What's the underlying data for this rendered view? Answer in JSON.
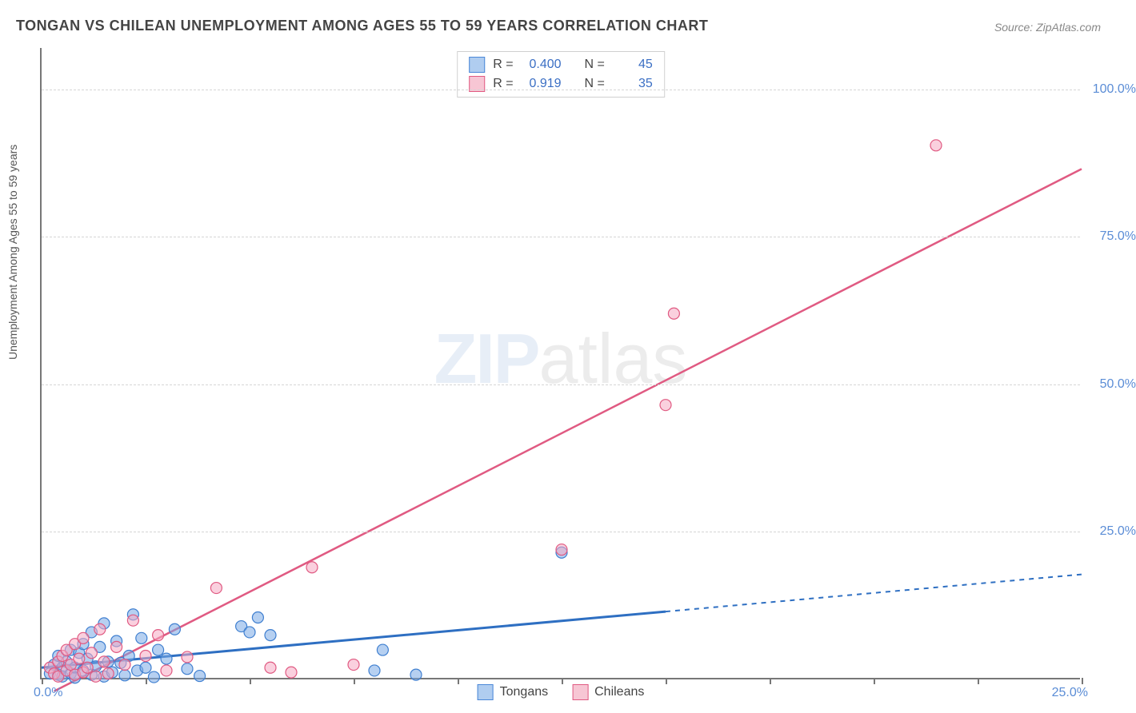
{
  "title": "TONGAN VS CHILEAN UNEMPLOYMENT AMONG AGES 55 TO 59 YEARS CORRELATION CHART",
  "source": "Source: ZipAtlas.com",
  "ylabel": "Unemployment Among Ages 55 to 59 years",
  "watermark_a": "ZIP",
  "watermark_b": "atlas",
  "chart": {
    "type": "scatter",
    "background_color": "#ffffff",
    "grid_color": "#d5d5d5",
    "axis_color": "#777777",
    "tick_label_color": "#5b8dd6",
    "axis_label_color": "#555555",
    "title_color": "#444444",
    "source_color": "#888888",
    "title_fontsize": 18,
    "label_fontsize": 14,
    "tick_fontsize": 16,
    "xlim": [
      0,
      25
    ],
    "ylim": [
      0,
      107
    ],
    "x_tick_step": 2.5,
    "x_axis_left_label": "0.0%",
    "x_axis_right_label": "25.0%",
    "y_ticks": [
      25,
      50,
      75,
      100
    ],
    "y_tick_labels": [
      "25.0%",
      "50.0%",
      "75.0%",
      "100.0%"
    ],
    "marker_radius": 7,
    "marker_stroke_width": 1.2,
    "stat_legend": {
      "rows": [
        {
          "swatch_fill": "#b0cdf0",
          "swatch_stroke": "#4a87d8",
          "r_label": "R =",
          "r_value": "0.400",
          "n_label": "N =",
          "n_value": "45"
        },
        {
          "swatch_fill": "#f7c6d4",
          "swatch_stroke": "#e05a82",
          "r_label": "R =",
          "r_value": "0.919",
          "n_label": "N =",
          "n_value": "35"
        }
      ]
    },
    "bottom_legend": [
      {
        "label": "Tongans",
        "fill": "#b0cdf0",
        "stroke": "#4a87d8"
      },
      {
        "label": "Chileans",
        "fill": "#f7c6d4",
        "stroke": "#e05a82"
      }
    ],
    "series": [
      {
        "name": "Tongans",
        "marker_fill": "rgba(122,170,230,0.55)",
        "marker_stroke": "#3f7fd0",
        "trend": {
          "x1": 0,
          "y1": 2.0,
          "x2": 15,
          "y2": 11.5,
          "x2_ext": 25,
          "y2_ext": 17.8,
          "color": "#2e6fc2",
          "width": 3
        },
        "points": [
          [
            0.2,
            1.0
          ],
          [
            0.3,
            2.5
          ],
          [
            0.4,
            0.8
          ],
          [
            0.4,
            4.0
          ],
          [
            0.5,
            2.0
          ],
          [
            0.5,
            0.5
          ],
          [
            0.6,
            3.0
          ],
          [
            0.7,
            1.0
          ],
          [
            0.7,
            5.0
          ],
          [
            0.8,
            2.0
          ],
          [
            0.8,
            0.3
          ],
          [
            0.9,
            4.5
          ],
          [
            1.0,
            6.0
          ],
          [
            1.0,
            1.5
          ],
          [
            1.1,
            3.5
          ],
          [
            1.2,
            8.0
          ],
          [
            1.2,
            0.8
          ],
          [
            1.3,
            2.2
          ],
          [
            1.4,
            5.5
          ],
          [
            1.5,
            0.5
          ],
          [
            1.5,
            9.5
          ],
          [
            1.6,
            3.0
          ],
          [
            1.7,
            1.2
          ],
          [
            1.8,
            6.5
          ],
          [
            1.9,
            2.8
          ],
          [
            2.0,
            0.7
          ],
          [
            2.1,
            4.0
          ],
          [
            2.2,
            11.0
          ],
          [
            2.3,
            1.5
          ],
          [
            2.4,
            7.0
          ],
          [
            2.5,
            2.0
          ],
          [
            2.7,
            0.4
          ],
          [
            2.8,
            5.0
          ],
          [
            3.0,
            3.5
          ],
          [
            3.2,
            8.5
          ],
          [
            3.5,
            1.8
          ],
          [
            3.8,
            0.6
          ],
          [
            4.8,
            9.0
          ],
          [
            5.0,
            8.0
          ],
          [
            5.2,
            10.5
          ],
          [
            5.5,
            7.5
          ],
          [
            8.0,
            1.5
          ],
          [
            8.2,
            5.0
          ],
          [
            9.0,
            0.8
          ],
          [
            12.5,
            21.5
          ]
        ]
      },
      {
        "name": "Chileans",
        "marker_fill": "rgba(245,170,195,0.55)",
        "marker_stroke": "#e05a82",
        "trend": {
          "x1": 0.3,
          "y1": -2,
          "x2": 25,
          "y2": 86.5,
          "color": "#e05a82",
          "width": 2.5
        },
        "points": [
          [
            0.2,
            2.0
          ],
          [
            0.3,
            1.0
          ],
          [
            0.4,
            3.0
          ],
          [
            0.4,
            0.5
          ],
          [
            0.5,
            4.0
          ],
          [
            0.6,
            1.5
          ],
          [
            0.6,
            5.0
          ],
          [
            0.7,
            2.5
          ],
          [
            0.8,
            0.8
          ],
          [
            0.8,
            6.0
          ],
          [
            0.9,
            3.5
          ],
          [
            1.0,
            1.2
          ],
          [
            1.0,
            7.0
          ],
          [
            1.1,
            2.0
          ],
          [
            1.2,
            4.5
          ],
          [
            1.3,
            0.5
          ],
          [
            1.4,
            8.5
          ],
          [
            1.5,
            3.0
          ],
          [
            1.6,
            1.0
          ],
          [
            1.8,
            5.5
          ],
          [
            2.0,
            2.5
          ],
          [
            2.2,
            10.0
          ],
          [
            2.5,
            4.0
          ],
          [
            2.8,
            7.5
          ],
          [
            3.0,
            1.5
          ],
          [
            3.5,
            3.8
          ],
          [
            4.2,
            15.5
          ],
          [
            5.5,
            2.0
          ],
          [
            6.0,
            1.2
          ],
          [
            6.5,
            19.0
          ],
          [
            7.5,
            2.5
          ],
          [
            12.5,
            22.0
          ],
          [
            15.0,
            46.5
          ],
          [
            15.2,
            62.0
          ],
          [
            21.5,
            90.5
          ]
        ]
      }
    ]
  }
}
